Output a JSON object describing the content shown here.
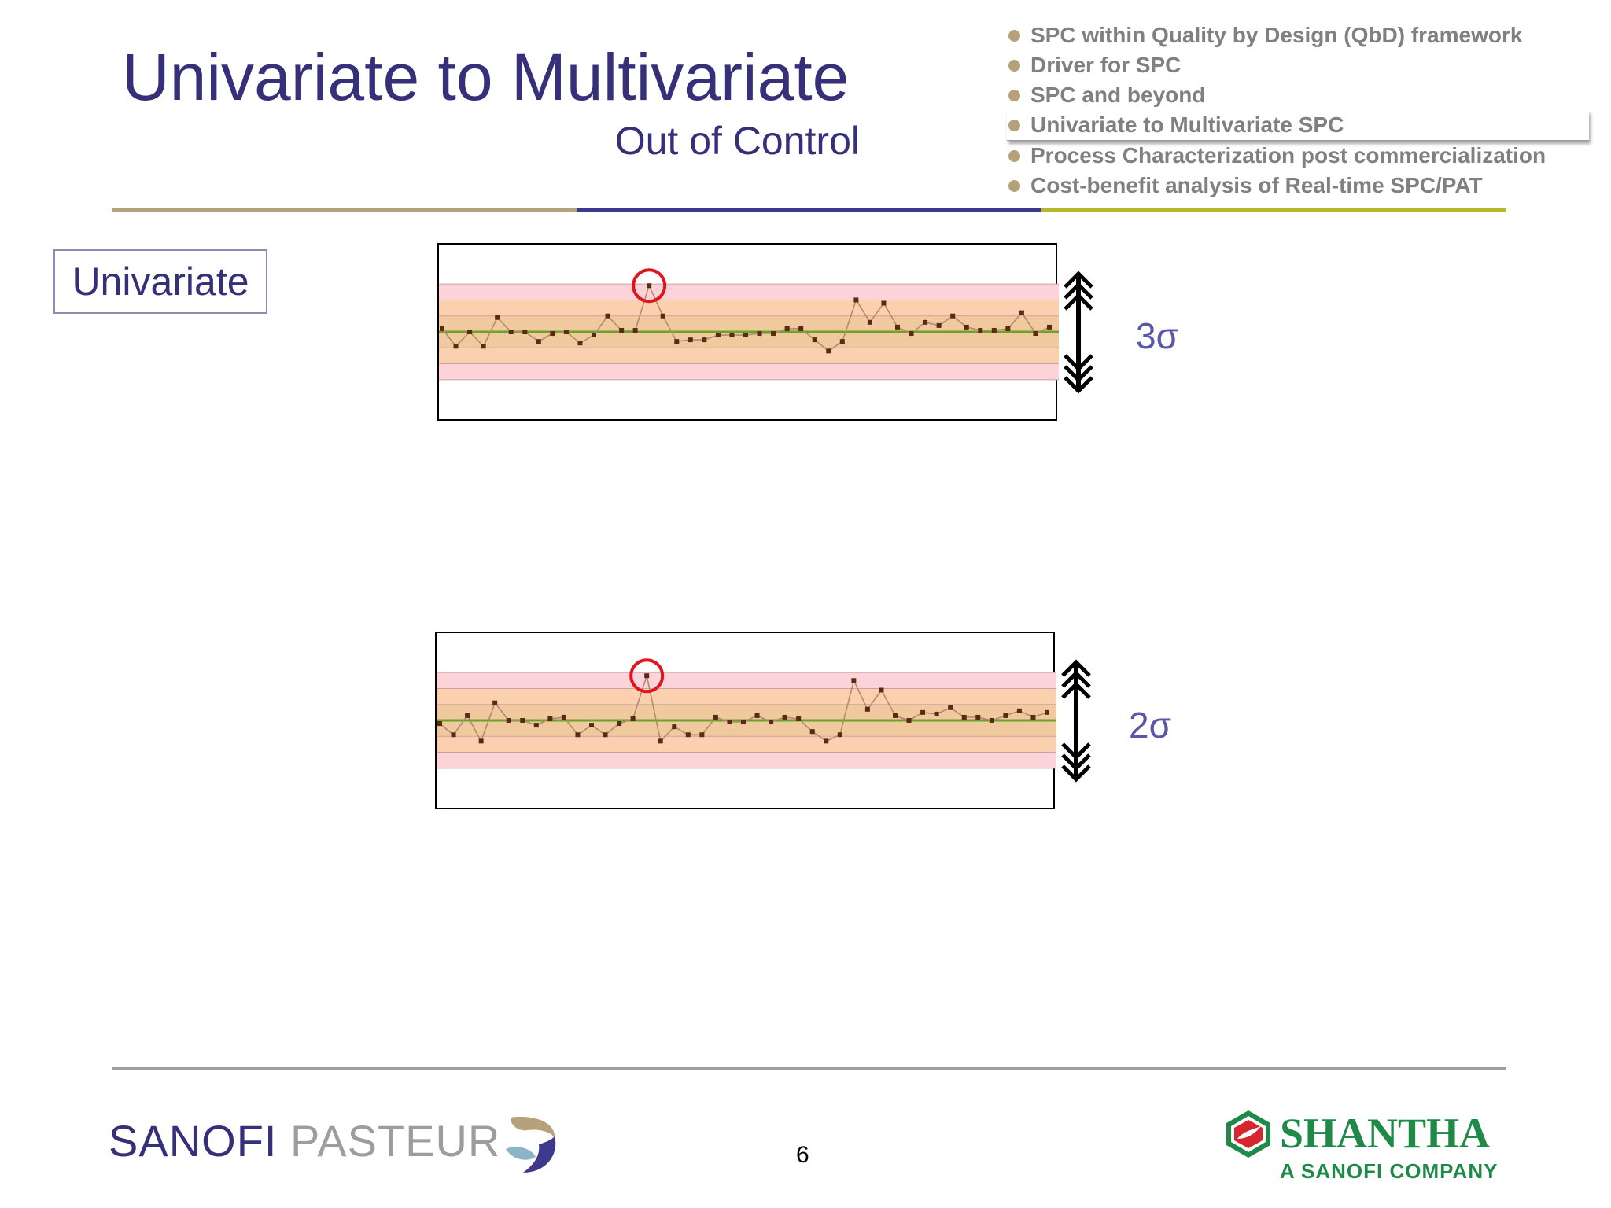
{
  "slide": {
    "title": "Univariate to Multivariate",
    "subtitle": "Out of Control",
    "section_label": "Univariate",
    "page_number": "6"
  },
  "agenda": {
    "items": [
      {
        "label": "SPC within Quality by Design (QbD) framework",
        "active": false
      },
      {
        "label": "Driver for SPC",
        "active": false
      },
      {
        "label": "SPC and beyond",
        "active": false
      },
      {
        "label": "Univariate to Multivariate SPC",
        "active": true
      },
      {
        "label": "Process Characterization post commercialization",
        "active": false
      },
      {
        "label": "Cost-benefit  analysis of Real-time SPC/PAT",
        "active": false
      }
    ]
  },
  "colors": {
    "title": "#353079",
    "rule_segments": [
      "#b6a27a",
      "#3d3a8e",
      "#b7b729"
    ],
    "zone_outer": "#fcd3d8",
    "zone_inner": "#fbd0ae",
    "zone_core": "#f0c99f",
    "center_line": "#6aa32a",
    "series_line": "#b48a6a",
    "marker": "#5a2a14",
    "highlight": "#e3131b"
  },
  "chart_data": [
    {
      "type": "line",
      "sigma_label": "3σ",
      "ylim": [
        -3.6,
        3.6
      ],
      "center": 0,
      "zones": [
        1,
        2,
        3
      ],
      "highlight_index": 15,
      "values": [
        0.2,
        -0.9,
        0.0,
        -0.9,
        0.9,
        0.0,
        0.0,
        -0.6,
        -0.1,
        0.0,
        -0.7,
        -0.2,
        1.0,
        0.1,
        0.1,
        2.9,
        1.0,
        -0.6,
        -0.5,
        -0.5,
        -0.2,
        -0.2,
        -0.2,
        -0.1,
        -0.1,
        0.2,
        0.2,
        -0.5,
        -1.2,
        -0.6,
        2.0,
        0.6,
        1.8,
        0.3,
        -0.1,
        0.6,
        0.4,
        1.0,
        0.3,
        0.1,
        0.1,
        0.2,
        1.2,
        -0.1,
        0.3
      ]
    },
    {
      "type": "line",
      "sigma_label": "2σ",
      "ylim": [
        -3.6,
        3.6
      ],
      "center": 0,
      "zones": [
        1,
        2,
        3
      ],
      "highlight_index": 15,
      "values": [
        -0.2,
        -0.9,
        0.3,
        -1.3,
        1.1,
        0.0,
        0.0,
        -0.3,
        0.1,
        0.2,
        -0.9,
        -0.3,
        -0.9,
        -0.2,
        0.1,
        2.8,
        -1.3,
        -0.4,
        -0.9,
        -0.9,
        0.2,
        -0.1,
        -0.1,
        0.3,
        -0.1,
        0.2,
        0.1,
        -0.7,
        -1.3,
        -0.9,
        2.5,
        0.7,
        1.9,
        0.3,
        0.0,
        0.5,
        0.4,
        0.8,
        0.2,
        0.2,
        0.0,
        0.3,
        0.6,
        0.2,
        0.5
      ]
    }
  ],
  "logos": {
    "left_a": "SANOFI",
    "left_b": " PASTEUR",
    "right_name": "SHANTHA",
    "right_tag": "A SANOFI COMPANY"
  }
}
